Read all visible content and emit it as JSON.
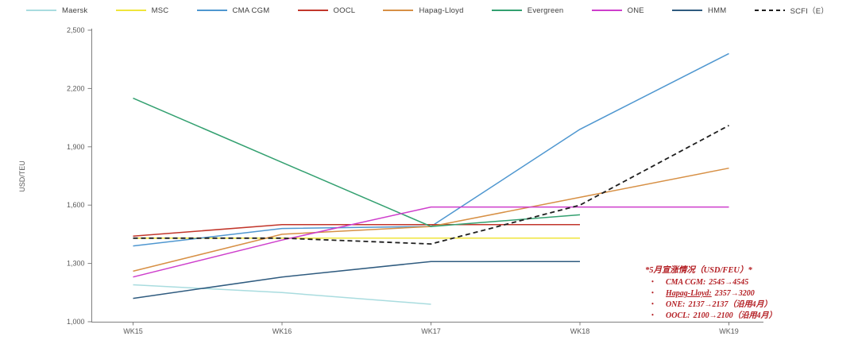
{
  "chart_data": {
    "type": "line",
    "title": "",
    "xlabel": "",
    "ylabel": "USD/TEU",
    "ylim": [
      1000,
      2500
    ],
    "yticks": [
      1000,
      1300,
      1600,
      1900,
      2200,
      2500
    ],
    "ytick_labels": [
      "1,000",
      "1,300",
      "1,600",
      "1,900",
      "2,200",
      "2,500"
    ],
    "grid": false,
    "legend_position": "top",
    "categories": [
      "WK15",
      "WK16",
      "WK17",
      "WK18",
      "WK19"
    ],
    "series": [
      {
        "name": "Maersk",
        "color": "#a9dcdf",
        "dash": false,
        "values": [
          1190,
          1150,
          1090,
          null,
          null
        ]
      },
      {
        "name": "MSC",
        "color": "#efe53b",
        "dash": false,
        "values": [
          1430,
          1430,
          1430,
          1430,
          null
        ]
      },
      {
        "name": "CMA CGM",
        "color": "#4f97d0",
        "dash": false,
        "values": [
          1390,
          1480,
          1490,
          1990,
          2380
        ]
      },
      {
        "name": "OOCL",
        "color": "#c2362b",
        "dash": false,
        "values": [
          1440,
          1500,
          1500,
          1500,
          null
        ]
      },
      {
        "name": "Hapag-Lloyd",
        "color": "#d79045",
        "dash": false,
        "values": [
          1260,
          1450,
          1490,
          1640,
          1790
        ]
      },
      {
        "name": "Evergreen",
        "color": "#33a070",
        "dash": false,
        "values": [
          2150,
          1820,
          1490,
          1550,
          null
        ]
      },
      {
        "name": "ONE",
        "color": "#ce3ecc",
        "dash": false,
        "values": [
          1230,
          1420,
          1590,
          1590,
          1590
        ]
      },
      {
        "name": "HMM",
        "color": "#2f5b7f",
        "dash": false,
        "values": [
          1120,
          1230,
          1310,
          1310,
          null
        ]
      },
      {
        "name": "SCFI（E）",
        "color": "#1f1f1f",
        "dash": true,
        "values": [
          1430,
          1430,
          1400,
          1600,
          2010
        ]
      }
    ]
  },
  "axis_text_color": "#595959",
  "annotation": {
    "bullet": "•",
    "title": "*5月宣涨情况（USD/FEU）*",
    "items": [
      {
        "name": "CMA CGM:",
        "value": "2545→4545",
        "underline": false
      },
      {
        "name": "Hapag-Lloyd:",
        "value": "2357→3200",
        "underline": true
      },
      {
        "name": "ONE:",
        "value": "2137→2137（沿用4月）",
        "underline": false
      },
      {
        "name": "OOCL:",
        "value": "2100→2100（沿用4月）",
        "underline": false
      }
    ]
  }
}
